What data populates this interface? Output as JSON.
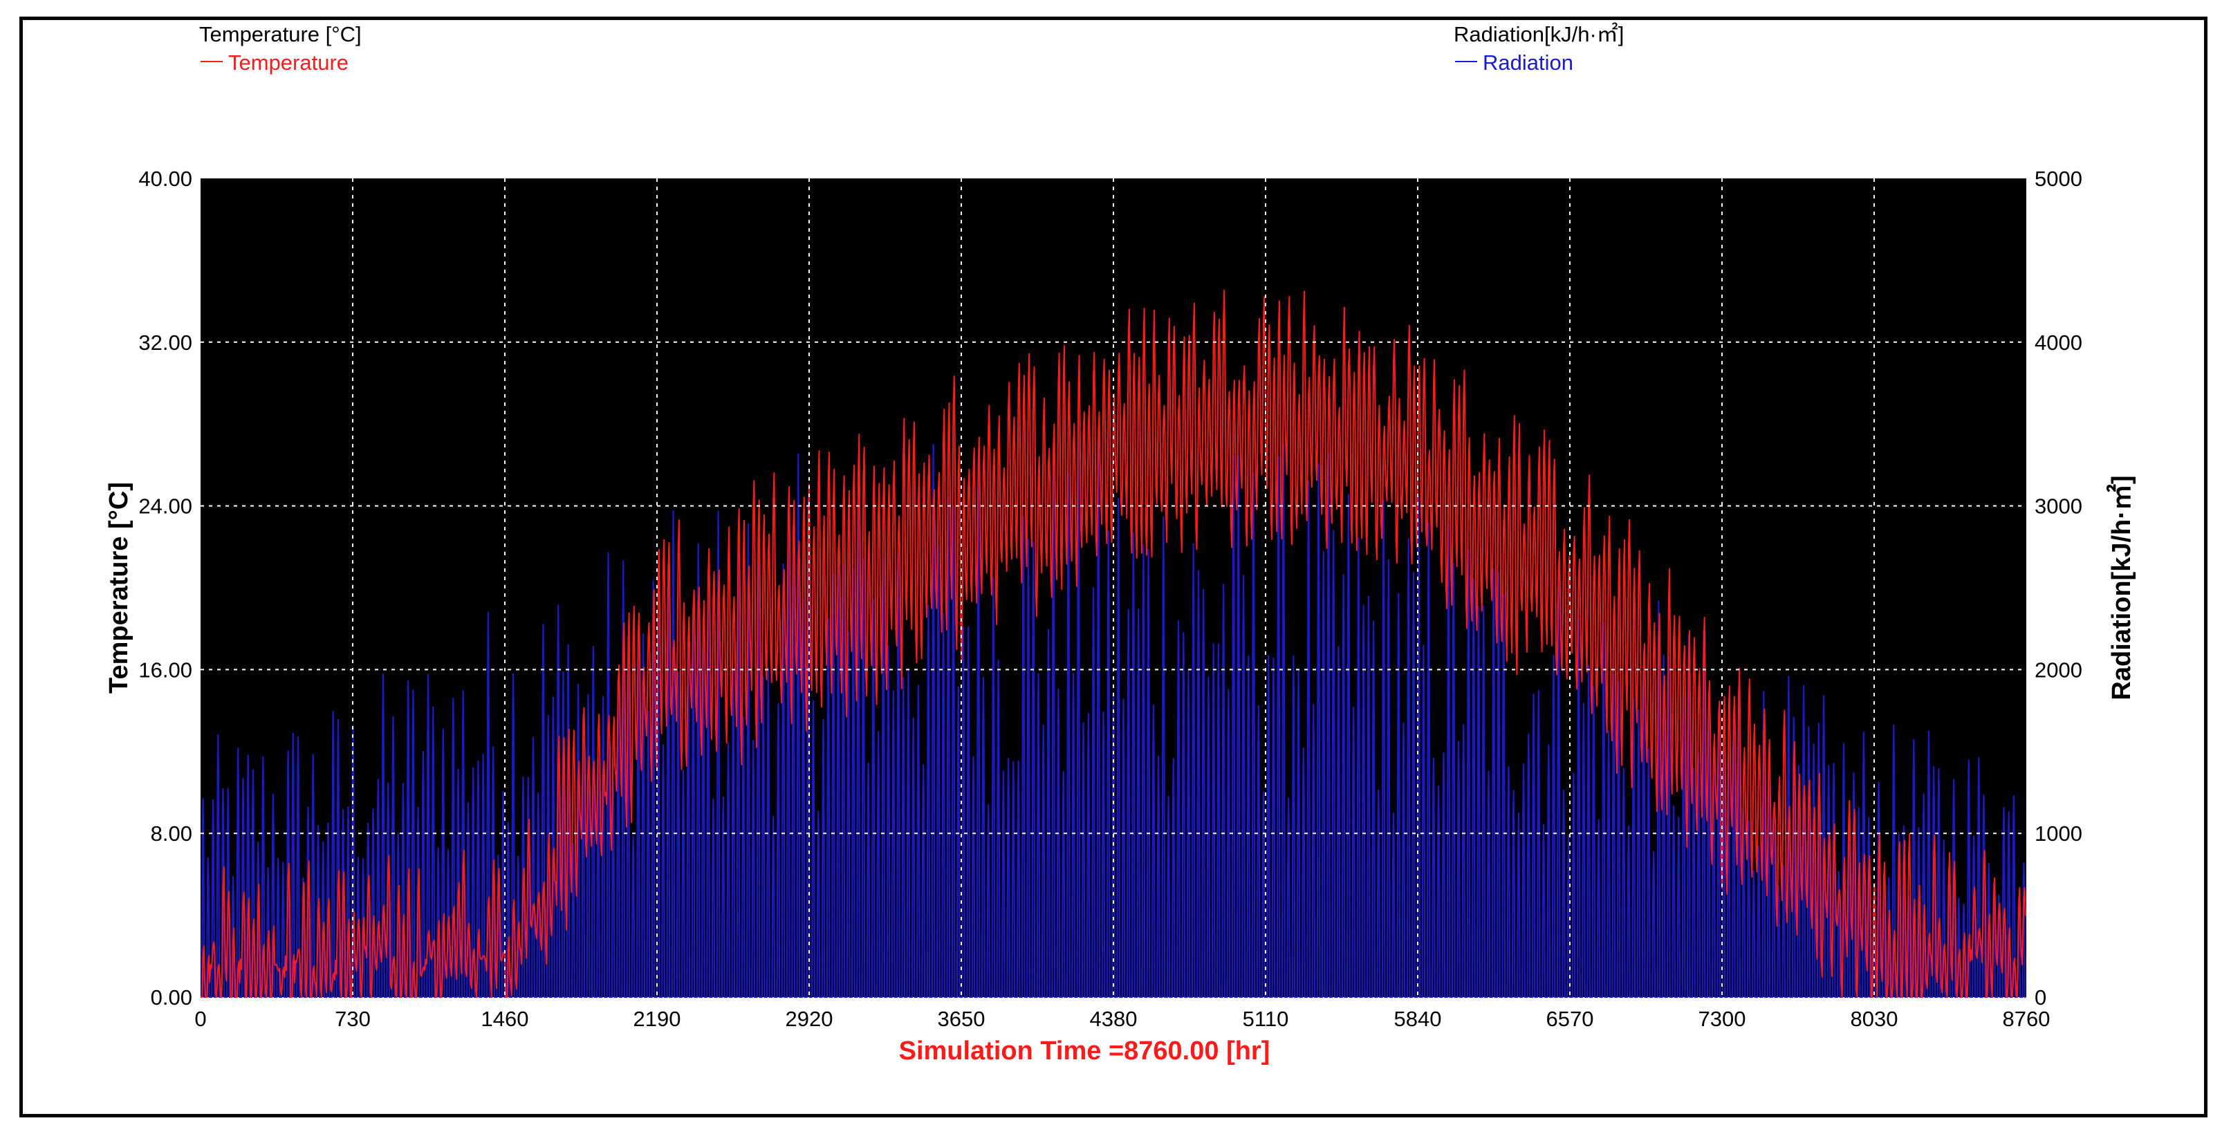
{
  "chart_data": {
    "type": "line",
    "legend_placement": "top",
    "legend_left": {
      "header": "Temperature [°C]",
      "series_label": "Temperature"
    },
    "legend_right": {
      "header": "Radiation[kJ/h·㎡]",
      "series_label": "Radiation"
    },
    "xlabel": "Simulation Time =8760.00 [hr]",
    "ylabel_left": "Temperature [°C]",
    "ylabel_right": "Radiation[kJ/h·㎡]",
    "xlim": [
      0,
      8760
    ],
    "ylim_left": [
      0,
      40
    ],
    "ylim_right": [
      0,
      5000
    ],
    "x_ticks": [
      "0",
      "730",
      "1460",
      "2190",
      "2920",
      "3650",
      "4380",
      "5110",
      "5840",
      "6570",
      "7300",
      "8030",
      "8760"
    ],
    "y_ticks_left": [
      "0.00",
      "8.00",
      "16.00",
      "24.00",
      "32.00",
      "40.00"
    ],
    "y_ticks_right": [
      "0",
      "1000",
      "2000",
      "3000",
      "4000",
      "5000"
    ],
    "grid": true,
    "background": "#000000",
    "colors": {
      "temperature": "#ff1a1a",
      "radiation": "#1a1acc",
      "xlabel": "#ff1a1a",
      "grid": "#ffffff"
    },
    "series": [
      {
        "name": "Temperature",
        "axis": "left",
        "envelope_x": [
          0,
          730,
          1460,
          2190,
          2920,
          3650,
          4380,
          5110,
          5840,
          6570,
          7300,
          8030,
          8760
        ],
        "daily_max": [
          4,
          4,
          5,
          20,
          24,
          28,
          31,
          33,
          30,
          24,
          15,
          6,
          4
        ],
        "daily_min": [
          0,
          0,
          0,
          12,
          14,
          18,
          23,
          24,
          22,
          15,
          7,
          0,
          0
        ],
        "peak_max": 37.5,
        "peak_x": 4920
      },
      {
        "name": "Radiation",
        "axis": "right",
        "envelope_x": [
          0,
          730,
          1460,
          2190,
          2920,
          3650,
          4380,
          5110,
          5840,
          6570,
          7300,
          8030,
          8760
        ],
        "daily_peak": [
          1500,
          1800,
          2400,
          2800,
          3200,
          3300,
          3300,
          3300,
          3000,
          2600,
          2100,
          1600,
          1500
        ],
        "night_value": 0,
        "peak_max": 3600
      }
    ]
  }
}
